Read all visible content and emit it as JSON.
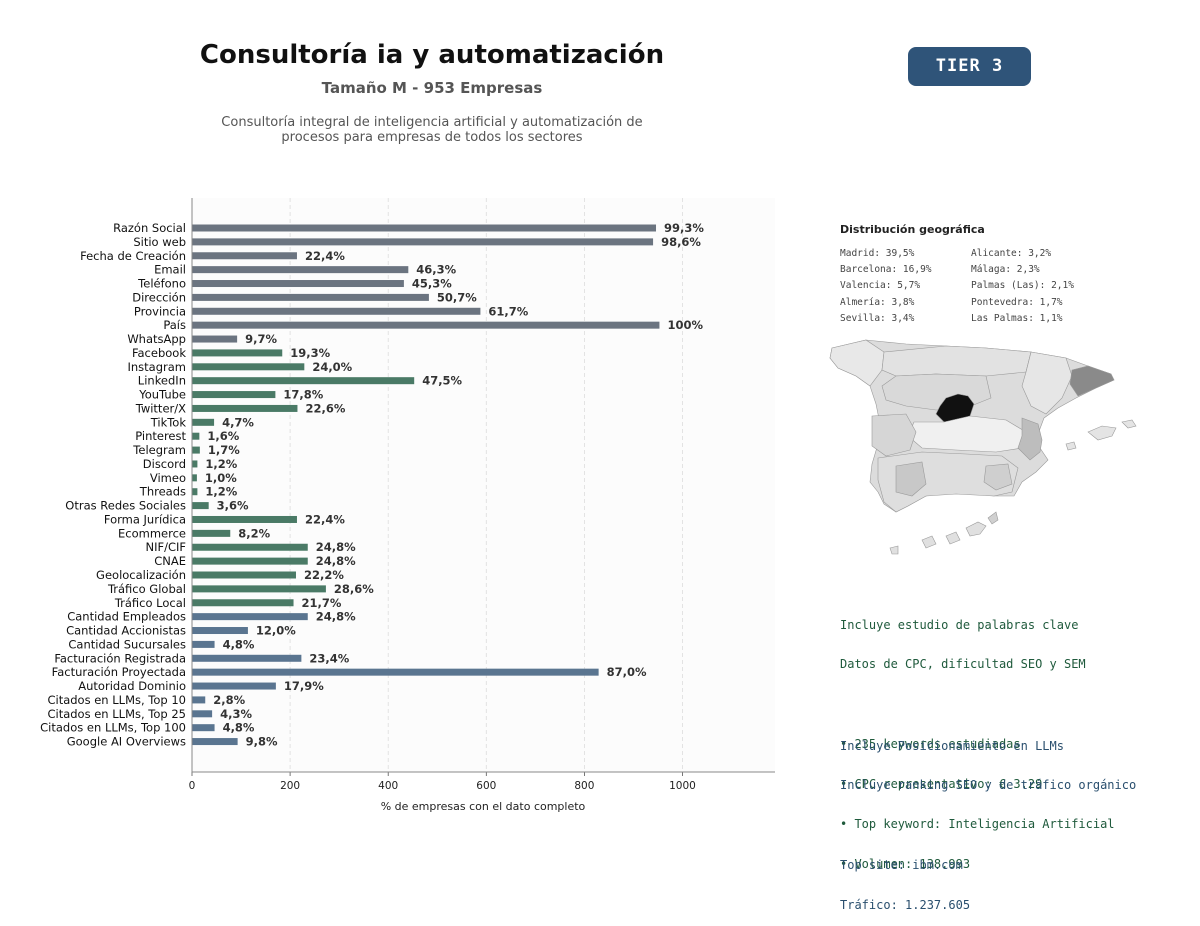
{
  "header": {
    "title": "Consultoría ia y automatización",
    "subtitle": "Tamaño M - 953 Empresas",
    "description_line1": "Consultoría integral de inteligencia artificial y automatización de",
    "description_line2": "procesos para empresas de todos los sectores",
    "tier_label": "TIER 3",
    "tier_color": "#2f5479"
  },
  "chart_data": {
    "type": "bar",
    "orientation": "horizontal",
    "xlabel": "% de empresas con el dato completo",
    "xlim": [
      0,
      1190
    ],
    "xticks": [
      0,
      200,
      400,
      600,
      800,
      1000
    ],
    "grid": "vertical dashed",
    "colors": {
      "basic": "#6b7480",
      "social": "#4a7a66",
      "business": "#5a7590"
    },
    "categories": [
      "Razón Social",
      "Sitio web",
      "Fecha de Creación",
      "Email",
      "Teléfono",
      "Dirección",
      "Provincia",
      "País",
      "WhatsApp",
      "Facebook",
      "Instagram",
      "LinkedIn",
      "YouTube",
      "Twitter/X",
      "TikTok",
      "Pinterest",
      "Telegram",
      "Discord",
      "Vimeo",
      "Threads",
      "Otras Redes Sociales",
      "Forma Jurídica",
      "Ecommerce",
      "NIF/CIF",
      "CNAE",
      "Geolocalización",
      "Tráfico Global",
      "Tráfico Local",
      "Cantidad Empleados",
      "Cantidad Accionistas",
      "Cantidad Sucursales",
      "Facturación Registrada",
      "Facturación Proyectada",
      "Autoridad Dominio",
      "Citados en LLMs, Top 10",
      "Citados en LLMs, Top 25",
      "Citados en LLMs, Top 100",
      "Google AI Overviews"
    ],
    "values": [
      946,
      940,
      214,
      441,
      432,
      483,
      588,
      953,
      92,
      184,
      229,
      453,
      170,
      215,
      45,
      15,
      16,
      11,
      10,
      11,
      34,
      214,
      78,
      236,
      236,
      212,
      273,
      207,
      236,
      114,
      46,
      223,
      829,
      171,
      27,
      41,
      46,
      93
    ],
    "labels": [
      "99,3%",
      "98,6%",
      "22,4%",
      "46,3%",
      "45,3%",
      "50,7%",
      "61,7%",
      "100%",
      "9,7%",
      "19,3%",
      "24,0%",
      "47,5%",
      "17,8%",
      "22,6%",
      "4,7%",
      "1,6%",
      "1,7%",
      "1,2%",
      "1,0%",
      "1,2%",
      "3,6%",
      "22,4%",
      "8,2%",
      "24,8%",
      "24,8%",
      "22,2%",
      "28,6%",
      "21,7%",
      "24,8%",
      "12,0%",
      "4,8%",
      "23,4%",
      "87,0%",
      "17,9%",
      "2,8%",
      "4,3%",
      "4,8%",
      "9,8%"
    ],
    "groups": [
      "basic",
      "basic",
      "basic",
      "basic",
      "basic",
      "basic",
      "basic",
      "basic",
      "basic",
      "social",
      "social",
      "social",
      "social",
      "social",
      "social",
      "social",
      "social",
      "social",
      "social",
      "social",
      "social",
      "social",
      "social",
      "social",
      "social",
      "social",
      "social",
      "social",
      "business",
      "business",
      "business",
      "business",
      "business",
      "business",
      "business",
      "business",
      "business",
      "business"
    ]
  },
  "geo": {
    "title": "Distribución geográfica",
    "left": [
      "Madrid: 39,5%",
      "Barcelona: 16,9%",
      "Valencia: 5,7%",
      "Almería: 3,8%",
      "Sevilla: 3,4%"
    ],
    "right": [
      "Alicante: 3,2%",
      "Málaga: 2,3%",
      "Palmas (Las): 2,1%",
      "Pontevedra: 1,7%",
      "Las Palmas: 1,1%"
    ]
  },
  "keywords": {
    "line1": "Incluye estudio de palabras clave",
    "line2": "Datos de CPC, dificultad SEO y SEM",
    "bullet1": "• 235 keywords estudiadas",
    "bullet2": "• CPC representativo: € 3.29",
    "bullet3": "• Top keyword: Inteligencia Artificial",
    "bullet4": "• Volumen: 138.993",
    "color": "#1f5a3c"
  },
  "llm": {
    "line1": "Incluye Posicionamiento en LLMs",
    "line2": "Incluye ranking SEO y de tráfico orgánico",
    "top_site": "Top site: ibm.com",
    "traffic": "Tráfico: 1.237.605",
    "color": "#2a4f6e"
  }
}
